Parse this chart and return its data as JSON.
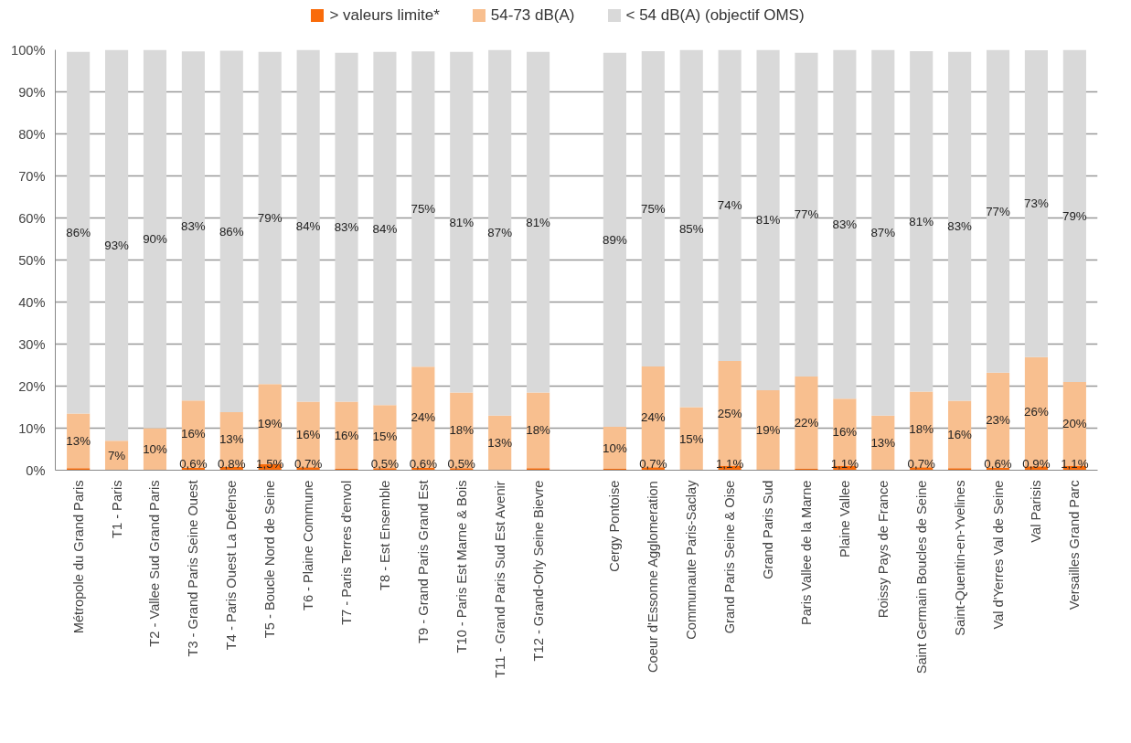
{
  "chart_data": {
    "type": "bar",
    "stacked": true,
    "legend": "top",
    "grid": "y",
    "categories": [
      "Métropole du Grand Paris",
      "T1 - Paris",
      "T2 - Vallee Sud Grand Paris",
      "T3 - Grand Paris Seine Ouest",
      "T4 - Paris Ouest La Defense",
      "T5 - Boucle Nord de Seine",
      "T6 - Plaine Commune",
      "T7 - Paris Terres d'envol",
      "T8 - Est Ensemble",
      "T9 - Grand Paris Grand Est",
      "T10 - Paris Est Marne & Bois",
      "T11 - Grand Paris Sud Est Avenir",
      "T12 - Grand-Orly Seine Bievre",
      null,
      "Cergy Pontoise",
      "Coeur d'Essonne Agglomeration",
      "Communaute Paris-Saclay",
      "Grand Paris Seine & Oise",
      "Grand Paris Sud",
      "Paris Vallee de la Marne",
      "Plaine Vallee",
      "Roissy Pays de France",
      "Saint Germain Boucles de Seine",
      "Saint-Quentin-en-Yvelines",
      "Val d'Yerres Val de Seine",
      "Val Parisis",
      "Versailles Grand Parc"
    ],
    "ylim": [
      0,
      100
    ],
    "yticks": [
      {
        "value": 0,
        "label": "0%"
      },
      {
        "value": 10,
        "label": "10%"
      },
      {
        "value": 20,
        "label": "20%"
      },
      {
        "value": 30,
        "label": "30%"
      },
      {
        "value": 40,
        "label": "40%"
      },
      {
        "value": 50,
        "label": "50%"
      },
      {
        "value": 60,
        "label": "60%"
      },
      {
        "value": 70,
        "label": "70%"
      },
      {
        "value": 80,
        "label": "80%"
      },
      {
        "value": 90,
        "label": "90%"
      },
      {
        "value": 100,
        "label": "100%"
      }
    ],
    "series": [
      {
        "name": "> valeurs limite*",
        "color": "#f96b0a",
        "values": [
          0.5,
          0,
          0,
          0.6,
          0.8,
          1.5,
          0.7,
          0.3,
          0.5,
          0.6,
          0.5,
          0,
          0.5,
          null,
          0.3,
          0.7,
          0,
          1.1,
          0,
          0.3,
          1.1,
          0,
          0.7,
          0.5,
          0.6,
          0.9,
          1.1
        ],
        "value_labels": [
          null,
          null,
          null,
          "0,6%",
          "0,8%",
          "1,5%",
          "0,7%",
          null,
          "0,5%",
          "0,6%",
          "0,5%",
          null,
          null,
          null,
          null,
          "0,7%",
          null,
          "1,1%",
          null,
          null,
          "1,1%",
          null,
          "0,7%",
          null,
          "0,6%",
          "0,9%",
          "1,1%"
        ]
      },
      {
        "name": "54-73 dB(A)",
        "color": "#f8bf8f",
        "values": [
          13,
          7,
          10,
          16,
          13,
          19,
          15.6,
          16,
          15,
          24,
          18,
          13,
          18,
          null,
          10,
          24,
          15,
          24.9,
          19,
          22,
          15.9,
          13,
          18,
          16,
          22.6,
          26,
          19.9
        ],
        "value_labels": [
          "13%",
          "7%",
          "10%",
          "16%",
          "13%",
          "19%",
          "16%",
          "16%",
          "15%",
          "24%",
          "18%",
          "13%",
          "18%",
          null,
          "10%",
          "24%",
          "15%",
          "25%",
          "19%",
          "22%",
          "16%",
          "13%",
          "18%",
          "16%",
          "23%",
          "26%",
          "20%"
        ]
      },
      {
        "name": "< 54 dB(A) (objectif OMS)",
        "color": "#d9d9d9",
        "values": [
          86,
          93,
          90,
          83,
          86,
          79,
          83.7,
          83,
          84,
          75,
          81,
          87,
          81,
          null,
          89,
          75,
          85,
          74,
          81,
          77,
          83,
          87,
          81,
          83,
          76.8,
          73,
          79
        ],
        "value_labels": [
          "86%",
          "93%",
          "90%",
          "83%",
          "86%",
          "79%",
          "84%",
          "83%",
          "84%",
          "75%",
          "81%",
          "87%",
          "81%",
          null,
          "89%",
          "75%",
          "85%",
          "74%",
          "81%",
          "77%",
          "83%",
          "87%",
          "81%",
          "83%",
          "77%",
          "73%",
          "79%"
        ]
      }
    ]
  }
}
